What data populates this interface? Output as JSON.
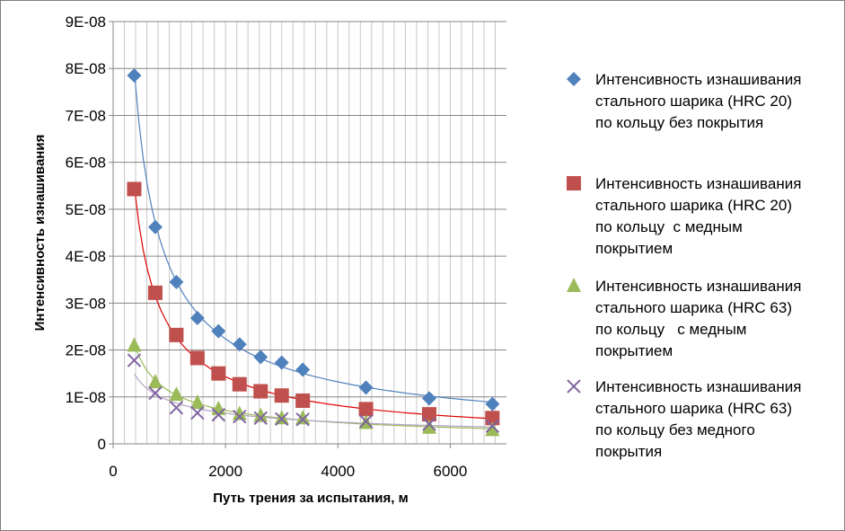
{
  "chart_data": {
    "type": "scatter",
    "xlabel": "Путь трения за испытания, м",
    "ylabel": "Интенсивность изнашивания",
    "xlim": [
      0,
      7000
    ],
    "ylim": [
      0,
      9e-08
    ],
    "x_ticks": [
      0,
      2000,
      4000,
      6000
    ],
    "x_tick_labels": [
      "0",
      "2000",
      "4000",
      "6000"
    ],
    "y_ticks": [
      0,
      1e-08,
      2e-08,
      3e-08,
      4e-08,
      5e-08,
      6e-08,
      7e-08,
      8e-08,
      9e-08
    ],
    "y_tick_labels": [
      "0",
      "1E-08",
      "2E-08",
      "3E-08",
      "4E-08",
      "5E-08",
      "6E-08",
      "7E-08",
      "8E-08",
      "9E-08"
    ],
    "grid": true,
    "legend_position": "right",
    "trendlines": "power",
    "series": [
      {
        "name": "Интенсивность изнашивания стального шарика (HRC 20) по кольцу без покрытия",
        "legend_lines": [
          "Интенсивность изнашивания",
          "стального шарика (HRC 20)",
          "по кольцу без покрытия"
        ],
        "marker": "diamond",
        "color": "#4F81BD",
        "trend_color": "#4F81BD",
        "x": [
          375,
          750,
          1125,
          1500,
          1875,
          2250,
          2625,
          3000,
          3375,
          4500,
          5625,
          6750
        ],
        "y": [
          7.85e-08,
          4.62e-08,
          3.45e-08,
          2.68e-08,
          2.4e-08,
          2.12e-08,
          1.85e-08,
          1.73e-08,
          1.58e-08,
          1.2e-08,
          9.7e-09,
          8.5e-09
        ]
      },
      {
        "name": "Интенсивность изнашивания стального шарика (HRC 20) по кольцу  с медным покрытием",
        "legend_lines": [
          "Интенсивность изнашивания",
          "стального шарика (HRC 20)",
          "по кольцу  с медным",
          "покрытием"
        ],
        "marker": "square",
        "color": "#C0504D",
        "trend_color": "#E00000",
        "x": [
          375,
          750,
          1125,
          1500,
          1875,
          2250,
          2625,
          3000,
          3375,
          4500,
          5625,
          6750
        ],
        "y": [
          5.43e-08,
          3.22e-08,
          2.32e-08,
          1.83e-08,
          1.5e-08,
          1.27e-08,
          1.12e-08,
          1.03e-08,
          9.2e-09,
          7.4e-09,
          6.3e-09,
          5.5e-09
        ]
      },
      {
        "name": "Интенсивность изнашивания стального шарика (HRC 63) по кольцу   с медным покрытием",
        "legend_lines": [
          "Интенсивность изнашивания",
          "стального шарика (HRC 63)",
          "по кольцу   с медным",
          "покрытием"
        ],
        "marker": "triangle",
        "color": "#9BBB59",
        "trend_color": "#9BBB59",
        "x": [
          375,
          750,
          1125,
          1500,
          1875,
          2250,
          2625,
          3000,
          3375,
          4500,
          5625,
          6750
        ],
        "y": [
          2.1e-08,
          1.32e-08,
          1.05e-08,
          8.8e-09,
          7.5e-09,
          6.4e-09,
          6e-09,
          5.5e-09,
          5.5e-09,
          4.5e-09,
          3.5e-09,
          3e-09
        ]
      },
      {
        "name": "Интенсивность изнашивания стального шарика (HRC 63) по кольцу без медного покрытия",
        "legend_lines": [
          "Интенсивность изнашивания",
          "стального шарика (HRC 63)",
          "по кольцу без медного",
          "покрытия"
        ],
        "marker": "x",
        "color": "#8064A2",
        "trend_color": "#B3A2C7",
        "x": [
          375,
          750,
          1125,
          1500,
          1875,
          2250,
          2625,
          3000,
          3375,
          4500,
          5625,
          6750
        ],
        "y": [
          1.78e-08,
          1.08e-08,
          7.7e-09,
          6.6e-09,
          6.2e-09,
          5.8e-09,
          5.5e-09,
          5.3e-09,
          5.2e-09,
          4.8e-09,
          4.2e-09,
          3.8e-09
        ]
      }
    ]
  }
}
